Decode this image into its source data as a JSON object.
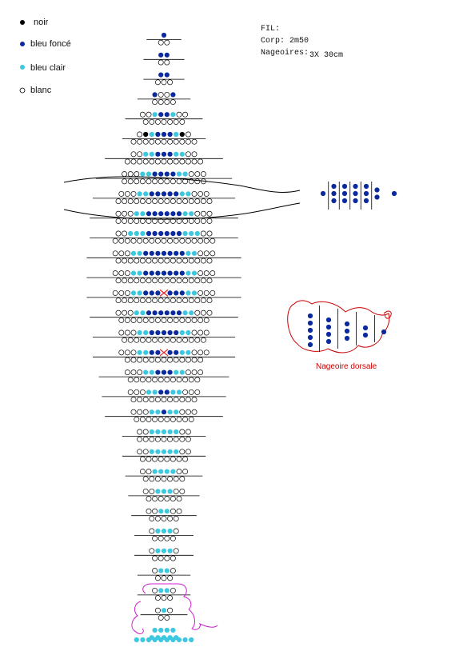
{
  "legend": {
    "items": [
      {
        "label": "noir",
        "color": "#000000",
        "kind": "black"
      },
      {
        "label": "bleu foncé",
        "color": "#0a2a9e",
        "kind": "dark"
      },
      {
        "label": "bleu clair",
        "color": "#3dc8e0",
        "kind": "light"
      },
      {
        "label": "blanc",
        "color": "#ffffff",
        "kind": "white"
      }
    ]
  },
  "info": {
    "heading": "FIL:",
    "body_label": "Corp: 2m50",
    "fins_label": "Nageoires:",
    "fins_value": "3X 30cm"
  },
  "dorsal": {
    "label": "Nageoire dorsale",
    "label_color": "#cc0000",
    "outline_color": "#cc0000"
  },
  "colors": {
    "black": "#000000",
    "dark": "#0a2a9e",
    "light": "#3dc8e0",
    "white": "#ffffff",
    "cross": "#e0201c",
    "tail": "#cc22cc",
    "line": "#000000"
  },
  "pattern": {
    "rows": [
      [
        "D"
      ],
      [
        "W",
        "W"
      ],
      [
        "D",
        "D"
      ],
      [
        "W",
        "W"
      ],
      [
        "D",
        "D"
      ],
      [
        "W",
        "W",
        "W"
      ],
      [
        "D",
        "W",
        "W",
        "D"
      ],
      [
        "W",
        "W",
        "W",
        "W"
      ],
      [
        "W",
        "W",
        "L",
        "D",
        "D",
        "L",
        "W",
        "W"
      ],
      [
        "W",
        "W",
        "W",
        "W",
        "W",
        "W",
        "W"
      ],
      [
        "W",
        "K",
        "L",
        "D",
        "D",
        "D",
        "L",
        "K",
        "W"
      ],
      [
        "W",
        "W",
        "W",
        "W",
        "W",
        "W",
        "W",
        "W",
        "W",
        "W",
        "W"
      ],
      [
        "W",
        "W",
        "L",
        "L",
        "D",
        "D",
        "D",
        "L",
        "L",
        "W",
        "W"
      ],
      [
        "W",
        "W",
        "W",
        "W",
        "W",
        "W",
        "W",
        "W",
        "W",
        "W",
        "W",
        "W",
        "W"
      ],
      [
        "W",
        "W",
        "W",
        "L",
        "L",
        "D",
        "D",
        "D",
        "D",
        "L",
        "L",
        "W",
        "W",
        "W"
      ],
      [
        "W",
        "W",
        "W",
        "W",
        "W",
        "W",
        "W",
        "W",
        "W",
        "W",
        "W",
        "W",
        "W",
        "W"
      ],
      [
        "W",
        "W",
        "W",
        "L",
        "L",
        "D",
        "D",
        "D",
        "D",
        "D",
        "L",
        "L",
        "W",
        "W",
        "W"
      ],
      [
        "W",
        "W",
        "W",
        "W",
        "W",
        "W",
        "W",
        "W",
        "W",
        "W",
        "W",
        "W",
        "W",
        "W",
        "W",
        "W"
      ],
      [
        "W",
        "W",
        "W",
        "L",
        "L",
        "D",
        "D",
        "D",
        "D",
        "D",
        "D",
        "L",
        "L",
        "W",
        "W",
        "W"
      ],
      [
        "W",
        "W",
        "W",
        "W",
        "W",
        "W",
        "W",
        "W",
        "W",
        "W",
        "W",
        "W",
        "W",
        "W",
        "W",
        "W"
      ],
      [
        "W",
        "W",
        "L",
        "L",
        "L",
        "D",
        "D",
        "D",
        "D",
        "D",
        "D",
        "L",
        "L",
        "L",
        "W",
        "W"
      ],
      [
        "W",
        "W",
        "W",
        "W",
        "W",
        "W",
        "W",
        "W",
        "W",
        "W",
        "W",
        "W",
        "W",
        "W",
        "W",
        "W",
        "W"
      ],
      [
        "W",
        "W",
        "W",
        "L",
        "L",
        "D",
        "D",
        "D",
        "D",
        "D",
        "D",
        "D",
        "L",
        "L",
        "W",
        "W",
        "W"
      ],
      [
        "W",
        "W",
        "W",
        "W",
        "W",
        "W",
        "W",
        "W",
        "W",
        "W",
        "W",
        "W",
        "W",
        "W",
        "W",
        "W"
      ],
      [
        "W",
        "W",
        "W",
        "L",
        "L",
        "D",
        "D",
        "D",
        "D",
        "D",
        "D",
        "D",
        "L",
        "L",
        "W",
        "W",
        "W"
      ],
      [
        "W",
        "W",
        "W",
        "W",
        "W",
        "W",
        "W",
        "W",
        "W",
        "W",
        "W",
        "W",
        "W",
        "W",
        "W",
        "W"
      ],
      [
        "W",
        "W",
        "W",
        "L",
        "L",
        "D",
        "D",
        "D",
        "X",
        "D",
        "D",
        "D",
        "L",
        "L",
        "W",
        "W",
        "W"
      ],
      [
        "W",
        "W",
        "W",
        "W",
        "W",
        "W",
        "W",
        "W",
        "W",
        "W",
        "W",
        "W",
        "W",
        "W",
        "W",
        "W"
      ],
      [
        "W",
        "W",
        "W",
        "L",
        "L",
        "D",
        "D",
        "D",
        "D",
        "D",
        "D",
        "L",
        "L",
        "W",
        "W",
        "W"
      ],
      [
        "W",
        "W",
        "W",
        "W",
        "W",
        "W",
        "W",
        "W",
        "W",
        "W",
        "W",
        "W",
        "W",
        "W",
        "W"
      ],
      [
        "W",
        "W",
        "W",
        "L",
        "L",
        "D",
        "D",
        "D",
        "D",
        "D",
        "L",
        "L",
        "W",
        "W",
        "W"
      ],
      [
        "W",
        "W",
        "W",
        "W",
        "W",
        "W",
        "W",
        "W",
        "W",
        "W",
        "W",
        "W",
        "W",
        "W"
      ],
      [
        "W",
        "W",
        "W",
        "L",
        "L",
        "D",
        "D",
        "X",
        "D",
        "D",
        "L",
        "L",
        "W",
        "W",
        "W"
      ],
      [
        "W",
        "W",
        "W",
        "W",
        "W",
        "W",
        "W",
        "W",
        "W",
        "W",
        "W",
        "W",
        "W"
      ],
      [
        "W",
        "W",
        "W",
        "L",
        "L",
        "D",
        "D",
        "D",
        "L",
        "L",
        "W",
        "W",
        "W"
      ],
      [
        "W",
        "W",
        "W",
        "W",
        "W",
        "W",
        "W",
        "W",
        "W",
        "W",
        "W",
        "W"
      ],
      [
        "W",
        "W",
        "W",
        "L",
        "L",
        "D",
        "D",
        "L",
        "L",
        "W",
        "W",
        "W"
      ],
      [
        "W",
        "W",
        "W",
        "W",
        "W",
        "W",
        "W",
        "W",
        "W",
        "W",
        "W"
      ],
      [
        "W",
        "W",
        "W",
        "L",
        "L",
        "D",
        "L",
        "L",
        "W",
        "W",
        "W"
      ],
      [
        "W",
        "W",
        "W",
        "W",
        "W",
        "W",
        "W",
        "W",
        "W",
        "W"
      ],
      [
        "W",
        "W",
        "L",
        "L",
        "L",
        "L",
        "L",
        "W",
        "W"
      ],
      [
        "W",
        "W",
        "W",
        "W",
        "W",
        "W",
        "W",
        "W",
        "W"
      ],
      [
        "W",
        "W",
        "L",
        "L",
        "L",
        "L",
        "L",
        "W",
        "W"
      ],
      [
        "W",
        "W",
        "W",
        "W",
        "W",
        "W",
        "W",
        "W"
      ],
      [
        "W",
        "W",
        "L",
        "L",
        "L",
        "L",
        "W",
        "W"
      ],
      [
        "W",
        "W",
        "W",
        "W",
        "W",
        "W",
        "W"
      ],
      [
        "W",
        "W",
        "L",
        "L",
        "L",
        "W",
        "W"
      ],
      [
        "W",
        "W",
        "W",
        "W",
        "W",
        "W"
      ],
      [
        "W",
        "W",
        "L",
        "L",
        "W",
        "W"
      ],
      [
        "W",
        "W",
        "W",
        "W",
        "W"
      ],
      [
        "W",
        "L",
        "L",
        "L",
        "W"
      ],
      [
        "W",
        "W",
        "W",
        "W"
      ],
      [
        "W",
        "L",
        "L",
        "L",
        "W"
      ],
      [
        "W",
        "W",
        "W",
        "W"
      ],
      [
        "W",
        "L",
        "L",
        "W"
      ],
      [
        "W",
        "W",
        "W"
      ],
      [
        "W",
        "L",
        "L",
        "W"
      ],
      [
        "W",
        "W",
        "W"
      ],
      [
        "W",
        "L",
        "W"
      ],
      [
        "W",
        "W"
      ],
      [
        "L",
        "L",
        "L",
        "L"
      ],
      [
        "L",
        "L",
        "L",
        "L",
        "L"
      ],
      [
        "L",
        "L",
        "L",
        "L",
        "L",
        "L",
        "L",
        "L",
        "L",
        "L"
      ]
    ]
  },
  "pectoral": {
    "columns": [
      1,
      3,
      3,
      3,
      3,
      2,
      1
    ]
  },
  "dorsal_pattern": {
    "columns": [
      5,
      4,
      3,
      2,
      1
    ]
  }
}
